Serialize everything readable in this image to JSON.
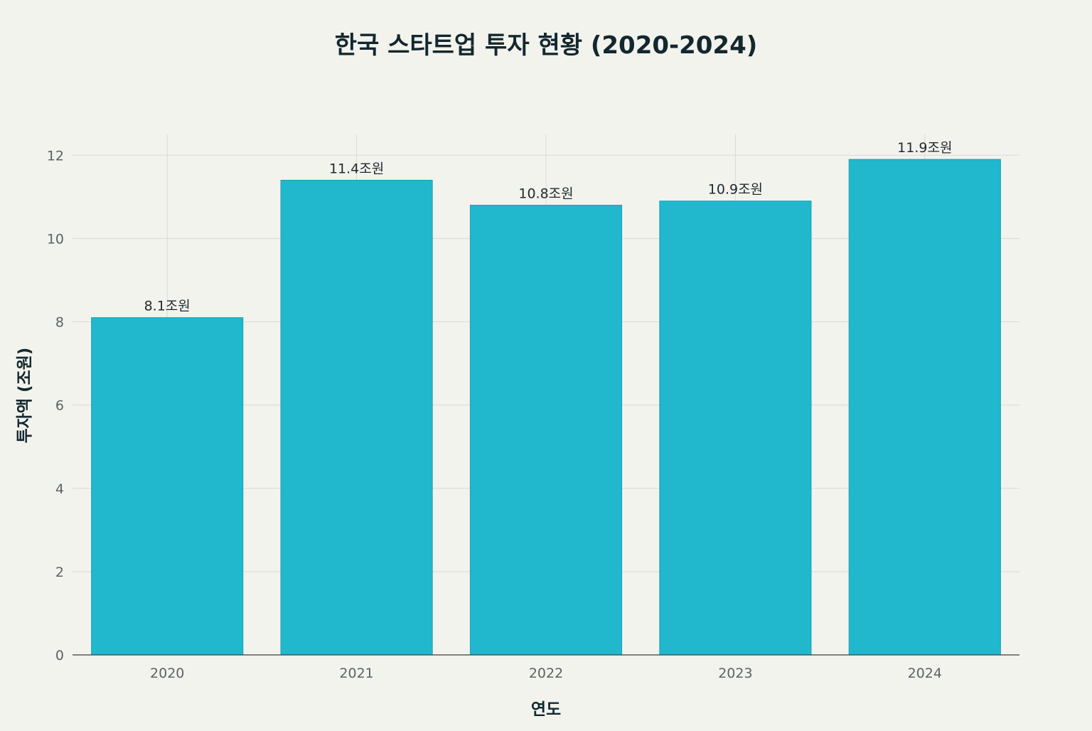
{
  "chart_data": {
    "type": "bar",
    "title": "한국 스타트업 투자 현황 (2020-2024)",
    "xlabel": "연도",
    "ylabel": "투자액 (조원)",
    "categories": [
      "2020",
      "2021",
      "2022",
      "2023",
      "2024"
    ],
    "values": [
      8.1,
      11.4,
      10.8,
      10.9,
      11.9
    ],
    "data_labels": [
      "8.1조원",
      "11.4조원",
      "10.8조원",
      "10.9조원",
      "11.9조원"
    ],
    "ylim": [
      0,
      12.5
    ],
    "yticks": [
      "0",
      "2",
      "4",
      "6",
      "8",
      "10",
      "12"
    ],
    "grid": true,
    "bar_color": "#21b8cd"
  }
}
